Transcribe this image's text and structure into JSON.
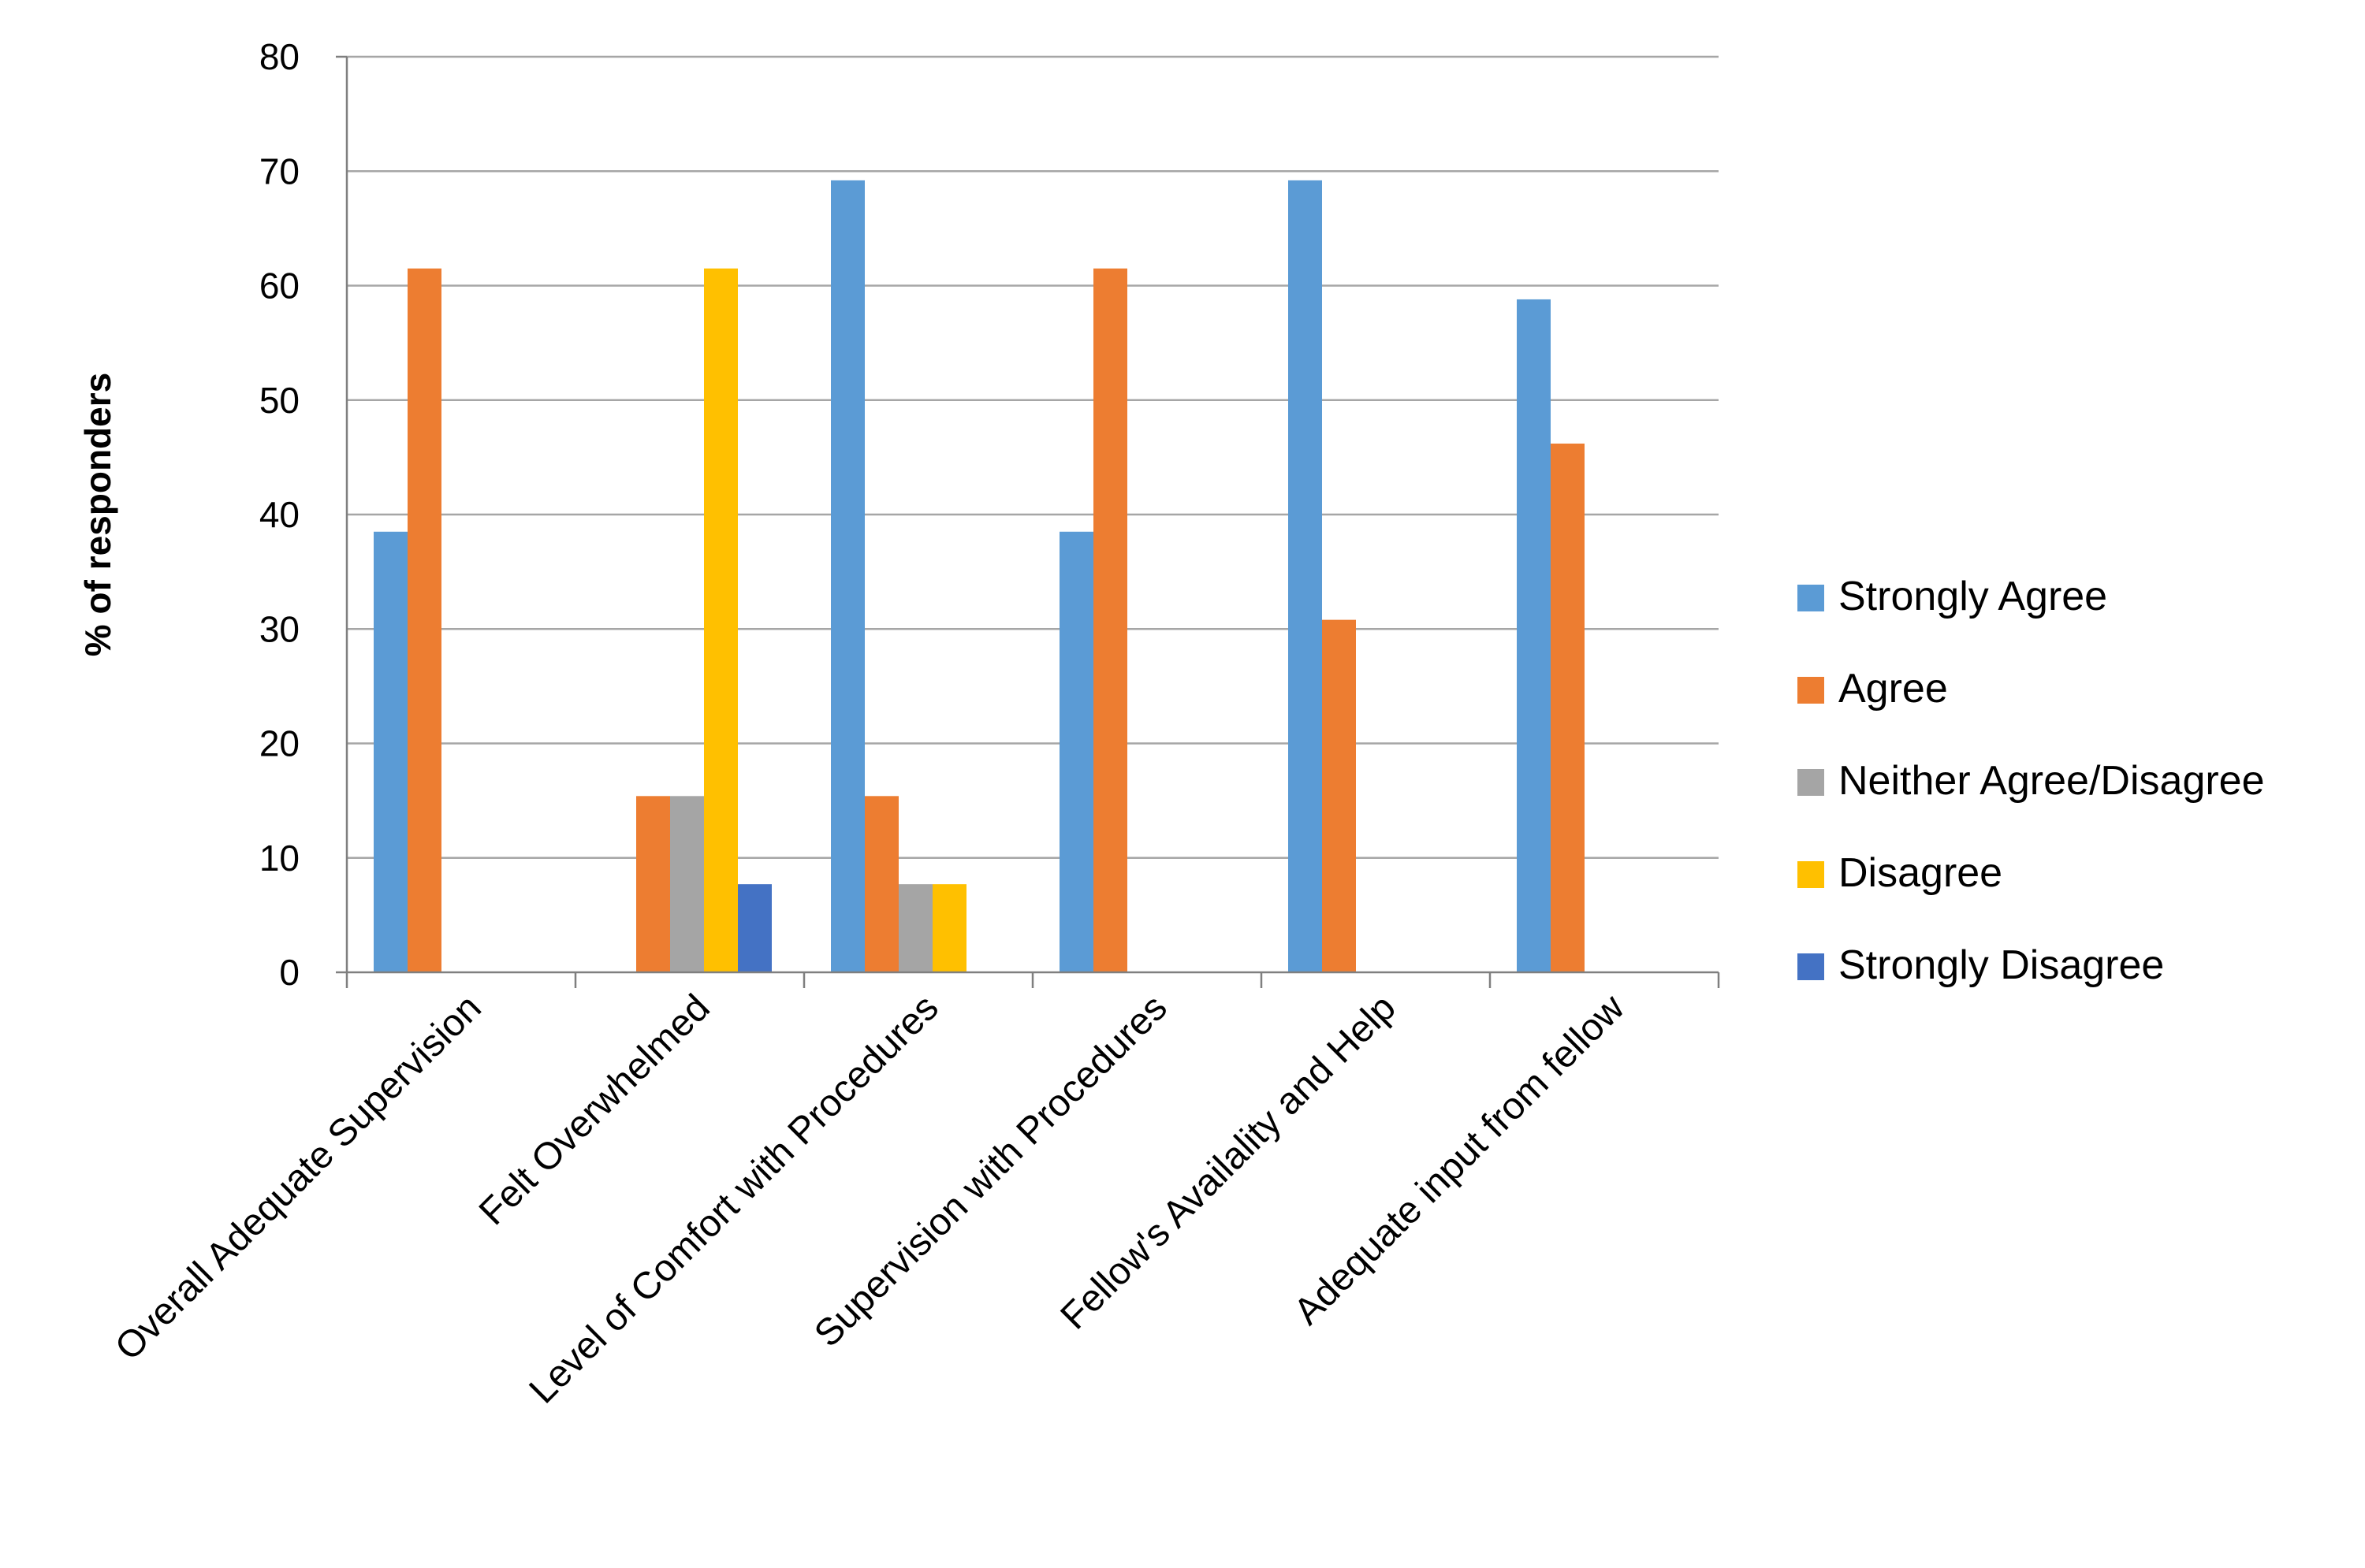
{
  "chart_data": {
    "type": "bar",
    "title": "",
    "xlabel": "",
    "ylabel": "% of responders",
    "ylim": [
      0,
      80
    ],
    "yticks": [
      0,
      10,
      20,
      30,
      40,
      50,
      60,
      70,
      80
    ],
    "grid": true,
    "legend_position": "right",
    "categories": [
      "Overall Adequate Supervision",
      "Felt Overwhelmed",
      "Level of Comfort with Procedures",
      "Supervision with Procedures",
      "Fellow's Availality and Help",
      "Adequate input from fellow"
    ],
    "series": [
      {
        "name": "Strongly Agree",
        "color": "#5B9BD5",
        "values": [
          38.5,
          0,
          69.2,
          38.5,
          69.2,
          58.8
        ]
      },
      {
        "name": "Agree",
        "color": "#ED7D31",
        "values": [
          61.5,
          15.4,
          15.4,
          61.5,
          30.8,
          46.2
        ]
      },
      {
        "name": "Neither Agree/Disagree",
        "color": "#A5A5A5",
        "values": [
          0,
          15.4,
          7.7,
          0,
          0,
          0
        ]
      },
      {
        "name": "Disagree",
        "color": "#FFC000",
        "values": [
          0,
          61.5,
          7.7,
          0,
          0,
          0
        ]
      },
      {
        "name": "Strongly Disagree",
        "color": "#4472C4",
        "values": [
          0,
          7.7,
          0,
          0,
          0,
          0
        ]
      }
    ]
  }
}
